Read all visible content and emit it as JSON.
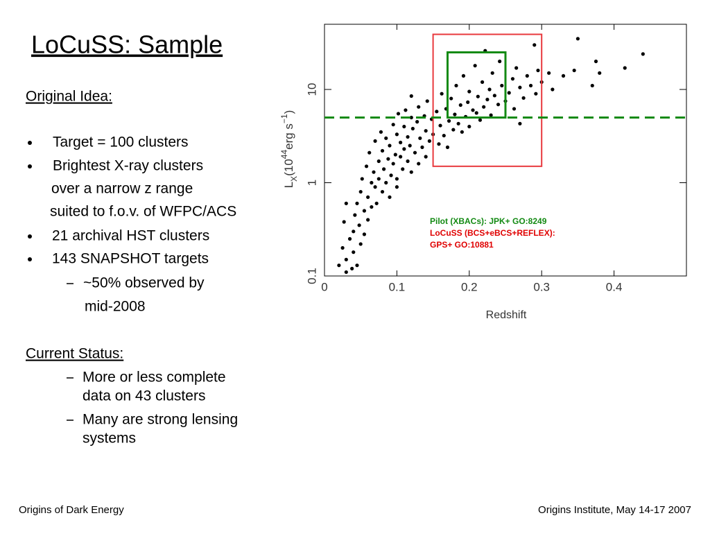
{
  "title": "LoCuSS: Sample",
  "original_idea": {
    "heading": "Original Idea:",
    "lines": [
      "Target = 100 clusters",
      "Brightest X-ray clusters",
      "over a narrow z range",
      "suited to f.o.v. of WFPC/ACS",
      "21 archival HST clusters",
      "143 SNAPSHOT targets",
      "~50% observed by",
      "mid-2008"
    ]
  },
  "current_status": {
    "heading": "Current Status:",
    "lines": [
      "More or less complete",
      "data on 43 clusters",
      "Many are strong lensing",
      "systems"
    ]
  },
  "footer": {
    "left": "Origins of Dark Energy",
    "right": "Origins Institute, May 14-17 2007"
  },
  "chart_data": {
    "type": "scatter",
    "xlabel": "Redshift",
    "ylabel_parts": [
      "L",
      "X",
      "(10",
      "44",
      "erg s",
      "−1",
      ")"
    ],
    "xlim": [
      0,
      0.5
    ],
    "ylim": [
      0.1,
      50
    ],
    "log_y": true,
    "xticks": [
      0,
      0.1,
      0.2,
      0.3,
      0.4
    ],
    "yticks": [
      0.1,
      1,
      10
    ],
    "color": "#000000",
    "x": [
      0.02,
      0.025,
      0.03,
      0.03,
      0.035,
      0.038,
      0.04,
      0.04,
      0.042,
      0.045,
      0.045,
      0.048,
      0.05,
      0.05,
      0.052,
      0.055,
      0.055,
      0.058,
      0.06,
      0.06,
      0.062,
      0.065,
      0.065,
      0.068,
      0.07,
      0.07,
      0.072,
      0.075,
      0.075,
      0.078,
      0.08,
      0.08,
      0.082,
      0.085,
      0.085,
      0.088,
      0.09,
      0.09,
      0.092,
      0.095,
      0.095,
      0.098,
      0.1,
      0.1,
      0.102,
      0.105,
      0.105,
      0.108,
      0.11,
      0.11,
      0.112,
      0.115,
      0.115,
      0.118,
      0.12,
      0.12,
      0.122,
      0.125,
      0.128,
      0.13,
      0.13,
      0.132,
      0.135,
      0.138,
      0.14,
      0.14,
      0.142,
      0.145,
      0.148,
      0.15,
      0.155,
      0.158,
      0.16,
      0.162,
      0.165,
      0.168,
      0.17,
      0.172,
      0.175,
      0.178,
      0.18,
      0.182,
      0.185,
      0.188,
      0.19,
      0.192,
      0.195,
      0.198,
      0.2,
      0.2,
      0.205,
      0.208,
      0.21,
      0.212,
      0.215,
      0.218,
      0.22,
      0.222,
      0.225,
      0.228,
      0.23,
      0.232,
      0.235,
      0.24,
      0.242,
      0.245,
      0.25,
      0.255,
      0.26,
      0.262,
      0.265,
      0.27,
      0.275,
      0.28,
      0.285,
      0.29,
      0.292,
      0.295,
      0.3,
      0.31,
      0.315,
      0.33,
      0.345,
      0.35,
      0.37,
      0.375,
      0.38,
      0.415,
      0.44,
      0.03,
      0.027,
      0.12,
      0.1,
      0.27
    ],
    "values": [
      0.13,
      0.2,
      0.11,
      0.15,
      0.25,
      0.12,
      0.3,
      0.18,
      0.45,
      0.6,
      0.13,
      0.35,
      0.8,
      0.22,
      1.1,
      0.5,
      0.28,
      1.5,
      0.7,
      0.4,
      2.1,
      1.0,
      0.55,
      1.3,
      0.9,
      2.8,
      0.6,
      1.7,
      1.1,
      3.5,
      0.8,
      2.2,
      1.4,
      1.0,
      3.0,
      1.8,
      0.7,
      2.5,
      1.2,
      4.2,
      1.6,
      2.0,
      1.1,
      3.3,
      5.5,
      1.9,
      2.7,
      1.4,
      4.0,
      2.3,
      6.0,
      1.7,
      3.1,
      2.5,
      5.0,
      1.3,
      3.8,
      2.1,
      4.5,
      1.6,
      6.5,
      3.0,
      2.4,
      5.2,
      1.9,
      3.6,
      7.5,
      2.8,
      4.8,
      3.3,
      5.8,
      2.6,
      4.1,
      9.0,
      3.2,
      6.2,
      2.4,
      4.6,
      8.0,
      3.7,
      5.4,
      11,
      4.3,
      6.8,
      3.5,
      14,
      5.1,
      7.3,
      4.0,
      9.5,
      6.0,
      18,
      5.6,
      8.4,
      4.7,
      12,
      6.5,
      26,
      7.8,
      10,
      5.3,
      15,
      8.6,
      6.9,
      20,
      11,
      7.5,
      9.2,
      13,
      6.2,
      17,
      10.5,
      8.1,
      14,
      11,
      30,
      9.0,
      16,
      12,
      15,
      10,
      14,
      16,
      35,
      11,
      20,
      15,
      17,
      24,
      0.6,
      0.38,
      8.5,
      0.9,
      4.3
    ],
    "regions": [
      {
        "xlim": [
          0.15,
          0.3
        ],
        "ylim": [
          1.5,
          39
        ],
        "color": "#e8383d"
      },
      {
        "xlim": [
          0.17,
          0.25
        ],
        "ylim": [
          5,
          25
        ],
        "color": "#138a13"
      }
    ],
    "hline": {
      "value": 5,
      "color": "#138a13"
    },
    "annotations": [
      {
        "text": "Pilot (XBACs): JPK+ GO:8249",
        "color": "#138a13"
      },
      {
        "text": "LoCuSS (BCS+eBCS+REFLEX):",
        "color": "#e00000"
      },
      {
        "text": "GPS+ GO:10881",
        "color": "#e00000"
      }
    ]
  }
}
